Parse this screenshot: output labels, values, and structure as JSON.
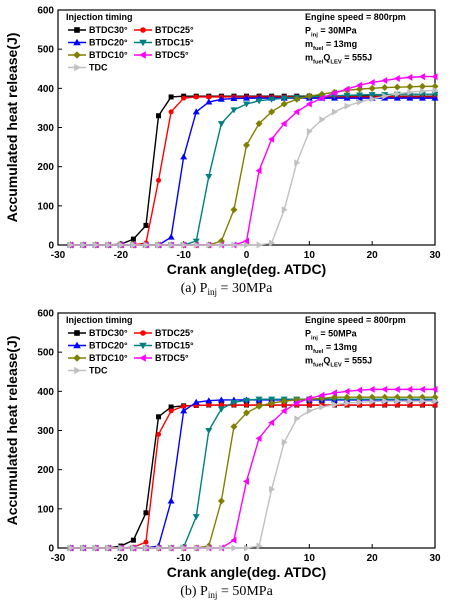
{
  "chart_data": [
    {
      "type": "line",
      "xlabel": "Crank angle(deg. ATDC)",
      "ylabel": "Accumulated heat release(J)",
      "x": [
        -28,
        -26,
        -24,
        -22,
        -20,
        -18,
        -16,
        -14,
        -12,
        -10,
        -8,
        -6,
        -4,
        -2,
        0,
        2,
        4,
        6,
        8,
        10,
        12,
        14,
        16,
        18,
        20,
        22,
        24,
        26,
        28,
        30
      ],
      "xlim": [
        -30,
        30
      ],
      "xticks": [
        -30,
        -20,
        -10,
        0,
        10,
        20,
        30
      ],
      "ylim": [
        0,
        600
      ],
      "yticks": [
        0,
        100,
        200,
        300,
        400,
        500,
        600
      ],
      "legend_title": "Injection timing",
      "series": [
        {
          "name": "BTDC30°",
          "color": "#000000",
          "marker": "square",
          "values": [
            0,
            0,
            0,
            0,
            2,
            15,
            50,
            330,
            378,
            380,
            380,
            380,
            380,
            380,
            380,
            380,
            380,
            380,
            380,
            380,
            380,
            380,
            380,
            380,
            380,
            380,
            380,
            380,
            380,
            380
          ]
        },
        {
          "name": "BTDC25°",
          "color": "#ff0000",
          "marker": "circle",
          "values": [
            0,
            0,
            0,
            0,
            0,
            0,
            5,
            165,
            340,
            375,
            378,
            378,
            378,
            378,
            378,
            378,
            378,
            378,
            378,
            378,
            378,
            378,
            378,
            378,
            378,
            378,
            378,
            378,
            378,
            378
          ]
        },
        {
          "name": "BTDC20°",
          "color": "#0000ff",
          "marker": "triangle-up",
          "values": [
            0,
            0,
            0,
            0,
            0,
            0,
            0,
            0,
            20,
            225,
            340,
            365,
            372,
            374,
            375,
            375,
            375,
            375,
            375,
            375,
            375,
            375,
            375,
            375,
            375,
            375,
            375,
            375,
            375,
            375
          ]
        },
        {
          "name": "BTDC15°",
          "color": "#008080",
          "marker": "triangle-down",
          "values": [
            0,
            0,
            0,
            0,
            0,
            0,
            0,
            0,
            0,
            0,
            10,
            175,
            310,
            345,
            360,
            368,
            372,
            375,
            377,
            378,
            380,
            381,
            382,
            383,
            384,
            384,
            385,
            385,
            385,
            385
          ]
        },
        {
          "name": "BTDC10°",
          "color": "#808000",
          "marker": "diamond",
          "values": [
            0,
            0,
            0,
            0,
            0,
            0,
            0,
            0,
            0,
            0,
            0,
            0,
            10,
            90,
            255,
            310,
            340,
            360,
            372,
            380,
            385,
            390,
            395,
            398,
            400,
            402,
            403,
            404,
            405,
            405
          ]
        },
        {
          "name": "BTDC5°",
          "color": "#ff00ff",
          "marker": "triangle-left",
          "values": [
            0,
            0,
            0,
            0,
            0,
            0,
            0,
            0,
            0,
            0,
            0,
            0,
            0,
            0,
            10,
            190,
            270,
            310,
            340,
            360,
            375,
            388,
            398,
            408,
            415,
            420,
            425,
            428,
            430,
            430
          ]
        },
        {
          "name": "TDC",
          "color": "#c0c0c0",
          "marker": "triangle-right",
          "values": [
            0,
            0,
            0,
            0,
            0,
            0,
            0,
            0,
            0,
            0,
            0,
            0,
            0,
            0,
            0,
            0,
            5,
            90,
            210,
            290,
            320,
            340,
            355,
            365,
            373,
            380,
            386,
            390,
            393,
            395
          ]
        }
      ],
      "annotations": [
        [
          {
            "t": "Engine speed = 800rpm"
          }
        ],
        [
          {
            "t": "P"
          },
          {
            "s": "inj"
          },
          {
            "t": " = 30MPa"
          }
        ],
        [
          {
            "t": "m"
          },
          {
            "s": "fuel"
          },
          {
            "t": " = 13mg"
          }
        ],
        [
          {
            "t": "m"
          },
          {
            "s": "fuel"
          },
          {
            "t": "Q"
          },
          {
            "s": "LEV"
          },
          {
            "t": " = 555J"
          }
        ]
      ],
      "caption": [
        {
          "t": "(a)  P"
        },
        {
          "s": "inj"
        },
        {
          "t": " = 30MPa"
        }
      ]
    },
    {
      "type": "line",
      "xlabel": "Crank angle(deg. ATDC)",
      "ylabel": "Accumulated heat release(J)",
      "x": [
        -28,
        -26,
        -24,
        -22,
        -20,
        -18,
        -16,
        -14,
        -12,
        -10,
        -8,
        -6,
        -4,
        -2,
        0,
        2,
        4,
        6,
        8,
        10,
        12,
        14,
        16,
        18,
        20,
        22,
        24,
        26,
        28,
        30
      ],
      "xlim": [
        -30,
        30
      ],
      "xticks": [
        -30,
        -20,
        -10,
        0,
        10,
        20,
        30
      ],
      "ylim": [
        0,
        600
      ],
      "yticks": [
        0,
        100,
        200,
        300,
        400,
        500,
        600
      ],
      "legend_title": "Injection timing",
      "series": [
        {
          "name": "BTDC30°",
          "color": "#000000",
          "marker": "square",
          "values": [
            0,
            0,
            0,
            0,
            5,
            20,
            90,
            335,
            360,
            363,
            364,
            365,
            365,
            365,
            365,
            365,
            365,
            365,
            365,
            365,
            365,
            365,
            365,
            365,
            365,
            365,
            365,
            365,
            365,
            365
          ]
        },
        {
          "name": "BTDC25°",
          "color": "#ff0000",
          "marker": "circle",
          "values": [
            0,
            0,
            0,
            0,
            0,
            2,
            15,
            290,
            350,
            362,
            364,
            365,
            365,
            365,
            365,
            365,
            365,
            365,
            365,
            365,
            365,
            365,
            365,
            365,
            365,
            365,
            365,
            365,
            365,
            365
          ]
        },
        {
          "name": "BTDC20°",
          "color": "#0000ff",
          "marker": "triangle-up",
          "values": [
            0,
            0,
            0,
            0,
            0,
            0,
            0,
            5,
            120,
            350,
            372,
            376,
            378,
            378,
            378,
            378,
            378,
            378,
            378,
            378,
            378,
            378,
            378,
            378,
            378,
            378,
            378,
            378,
            378,
            378
          ]
        },
        {
          "name": "BTDC15°",
          "color": "#008080",
          "marker": "triangle-down",
          "values": [
            0,
            0,
            0,
            0,
            0,
            0,
            0,
            0,
            0,
            2,
            80,
            300,
            355,
            372,
            377,
            380,
            380,
            380,
            380,
            380,
            380,
            380,
            380,
            380,
            380,
            380,
            380,
            380,
            380,
            380
          ]
        },
        {
          "name": "BTDC10°",
          "color": "#808000",
          "marker": "diamond",
          "values": [
            0,
            0,
            0,
            0,
            0,
            0,
            0,
            0,
            0,
            0,
            0,
            5,
            120,
            310,
            345,
            362,
            370,
            375,
            378,
            380,
            382,
            385,
            385,
            385,
            385,
            385,
            385,
            385,
            385,
            385
          ]
        },
        {
          "name": "BTDC5°",
          "color": "#ff00ff",
          "marker": "triangle-left",
          "values": [
            0,
            0,
            0,
            0,
            0,
            0,
            0,
            0,
            0,
            0,
            0,
            0,
            0,
            20,
            170,
            280,
            320,
            350,
            370,
            382,
            390,
            396,
            400,
            403,
            405,
            405,
            405,
            405,
            405,
            405
          ]
        },
        {
          "name": "TDC",
          "color": "#c0c0c0",
          "marker": "triangle-right",
          "values": [
            0,
            0,
            0,
            0,
            0,
            0,
            0,
            0,
            0,
            0,
            0,
            0,
            0,
            0,
            0,
            5,
            150,
            270,
            330,
            350,
            360,
            366,
            370,
            372,
            374,
            375,
            375,
            375,
            375,
            375
          ]
        }
      ],
      "annotations": [
        [
          {
            "t": "Engine speed = 800rpm"
          }
        ],
        [
          {
            "t": "P"
          },
          {
            "s": "inj"
          },
          {
            "t": " = 50MPa"
          }
        ],
        [
          {
            "t": "m"
          },
          {
            "s": "fuel"
          },
          {
            "t": " = 13mg"
          }
        ],
        [
          {
            "t": "m"
          },
          {
            "s": "fuel"
          },
          {
            "t": "Q"
          },
          {
            "s": "LEV"
          },
          {
            "t": " = 555J"
          }
        ]
      ],
      "caption": [
        {
          "t": "(b)  P"
        },
        {
          "s": "inj"
        },
        {
          "t": " = 50MPa"
        }
      ]
    }
  ]
}
